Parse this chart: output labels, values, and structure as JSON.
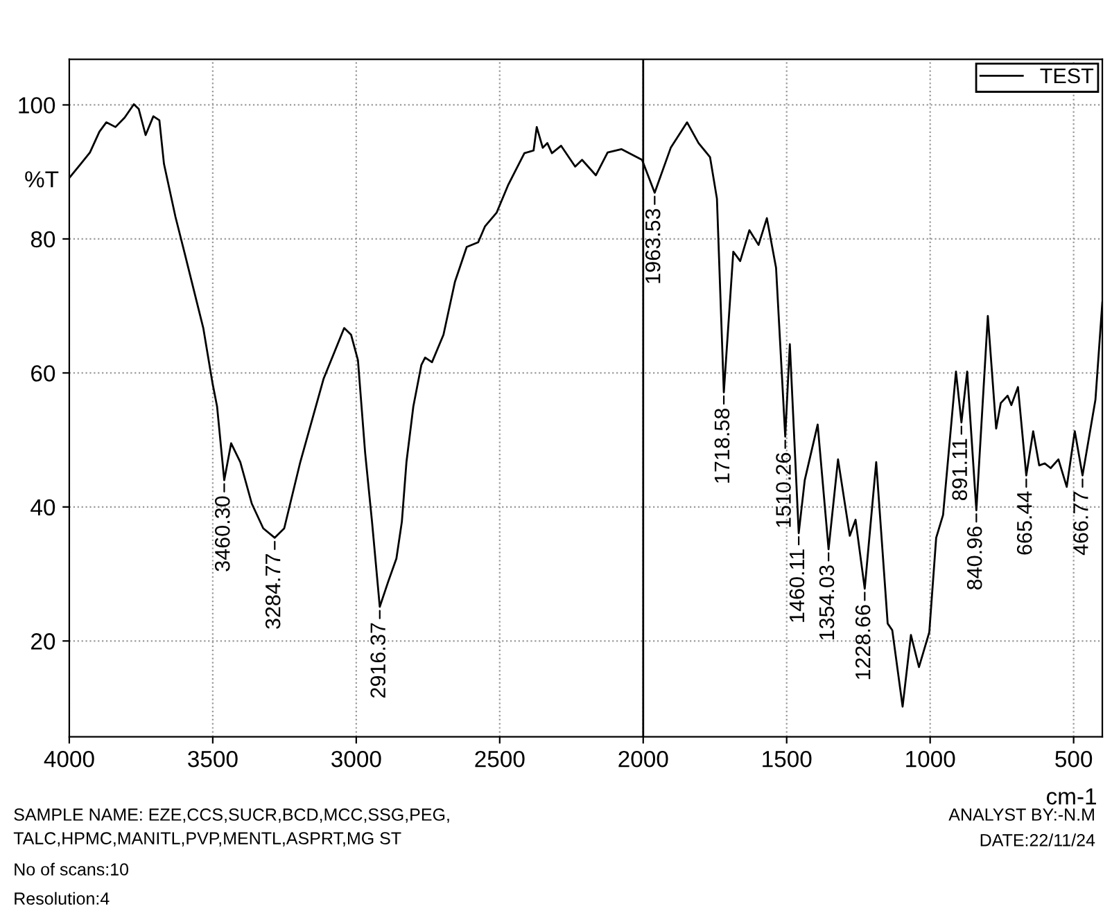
{
  "chart_data": {
    "type": "line",
    "xlabel": "cm-1",
    "ylabel": "%T",
    "xlim": [
      4000,
      400
    ],
    "ylim": [
      5.7,
      106.8
    ],
    "xticks": [
      4000,
      3500,
      3000,
      2500,
      2000,
      1500,
      1000,
      500
    ],
    "yticks": [
      20,
      40,
      60,
      80,
      100
    ],
    "grid": true,
    "legend": "top right",
    "line_style": "solid",
    "marker": "none",
    "ref_lines": [
      {
        "axis": "x",
        "value": 2000,
        "label": null,
        "color": "#000000"
      }
    ],
    "series": [
      {
        "name": "TEST",
        "color": "#000000",
        "x": [
          4000,
          3960,
          3928,
          3895,
          3871,
          3839,
          3807,
          3775,
          3758,
          3734,
          3707,
          3686,
          3670,
          3630,
          3597,
          3533,
          3501,
          3485,
          3460,
          3436,
          3404,
          3364,
          3324,
          3284,
          3251,
          3195,
          3114,
          3042,
          3018,
          2994,
          2969,
          2945,
          2918,
          2889,
          2860,
          2841,
          2825,
          2801,
          2773,
          2760,
          2736,
          2696,
          2656,
          2615,
          2575,
          2551,
          2511,
          2470,
          2414,
          2382,
          2371,
          2350,
          2334,
          2318,
          2286,
          2237,
          2213,
          2165,
          2124,
          2076,
          2004,
          1960,
          1904,
          1847,
          1807,
          1767,
          1743,
          1719,
          1686,
          1662,
          1630,
          1598,
          1569,
          1537,
          1505,
          1489,
          1458,
          1437,
          1392,
          1354,
          1321,
          1280,
          1260,
          1228,
          1188,
          1148,
          1132,
          1096,
          1067,
          1039,
          1003,
          979,
          955,
          910,
          891,
          871,
          839,
          799,
          770,
          754,
          730,
          717,
          694,
          665,
          641,
          620,
          601,
          580,
          553,
          524,
          496,
          469,
          424,
          400
        ],
        "values": [
          89.1,
          91.2,
          92.9,
          96.0,
          97.4,
          96.7,
          98.1,
          100.1,
          99.4,
          95.5,
          98.3,
          97.7,
          91.2,
          83.3,
          77.7,
          66.7,
          58.5,
          55.0,
          44.0,
          49.5,
          46.7,
          40.5,
          36.8,
          35.4,
          36.8,
          46.7,
          59.1,
          66.7,
          65.7,
          61.9,
          48.1,
          37.8,
          25.1,
          28.8,
          32.3,
          37.8,
          46.7,
          55.0,
          61.2,
          62.3,
          61.6,
          65.7,
          73.6,
          78.8,
          79.5,
          81.9,
          83.9,
          88.1,
          92.8,
          93.2,
          96.7,
          93.6,
          94.3,
          92.8,
          93.9,
          90.8,
          91.8,
          89.5,
          92.9,
          93.4,
          91.8,
          86.9,
          93.6,
          97.4,
          94.3,
          92.2,
          86.0,
          57.1,
          78.1,
          76.7,
          81.3,
          79.1,
          83.1,
          75.7,
          50.5,
          64.3,
          36.1,
          44.0,
          52.3,
          33.7,
          47.1,
          35.7,
          38.1,
          27.8,
          46.7,
          22.6,
          21.6,
          10.2,
          20.9,
          16.1,
          21.3,
          35.4,
          38.8,
          60.2,
          52.6,
          60.2,
          39.5,
          68.5,
          51.7,
          55.5,
          56.6,
          55.2,
          57.9,
          44.7,
          51.3,
          46.2,
          46.5,
          45.8,
          47.1,
          43.0,
          51.3,
          44.7,
          56.0,
          70.5
        ]
      }
    ],
    "annotations": [
      {
        "text": "3460.30",
        "x": 3460,
        "y": 44.0
      },
      {
        "text": "3284.77",
        "x": 3284,
        "y": 35.4
      },
      {
        "text": "2916.37",
        "x": 2918,
        "y": 25.1
      },
      {
        "text": "1963.53",
        "x": 1960,
        "y": 86.9
      },
      {
        "text": "1718.58",
        "x": 1719,
        "y": 57.1
      },
      {
        "text": "1510.26",
        "x": 1505,
        "y": 50.5
      },
      {
        "text": "1460.11",
        "x": 1458,
        "y": 36.1
      },
      {
        "text": "1354.03",
        "x": 1354,
        "y": 33.7
      },
      {
        "text": "1228.66",
        "x": 1228,
        "y": 27.8
      },
      {
        "text": "891.11",
        "x": 891,
        "y": 52.6
      },
      {
        "text": "840.96",
        "x": 839,
        "y": 39.5
      },
      {
        "text": "665.44",
        "x": 665,
        "y": 44.7
      },
      {
        "text": "466.77",
        "x": 469,
        "y": 44.7
      },
      "SAMPLE NAME: EZE,CCS,SUCR,BCD,MCC,SSG,PEG,\nTALC,HPMC,MANITL,PVP,MENTL,ASPRT,MG ST",
      "No of scans:10",
      "Resolution:4",
      "ANALYST BY:-N.M",
      "DATE:22/11/24"
    ]
  }
}
